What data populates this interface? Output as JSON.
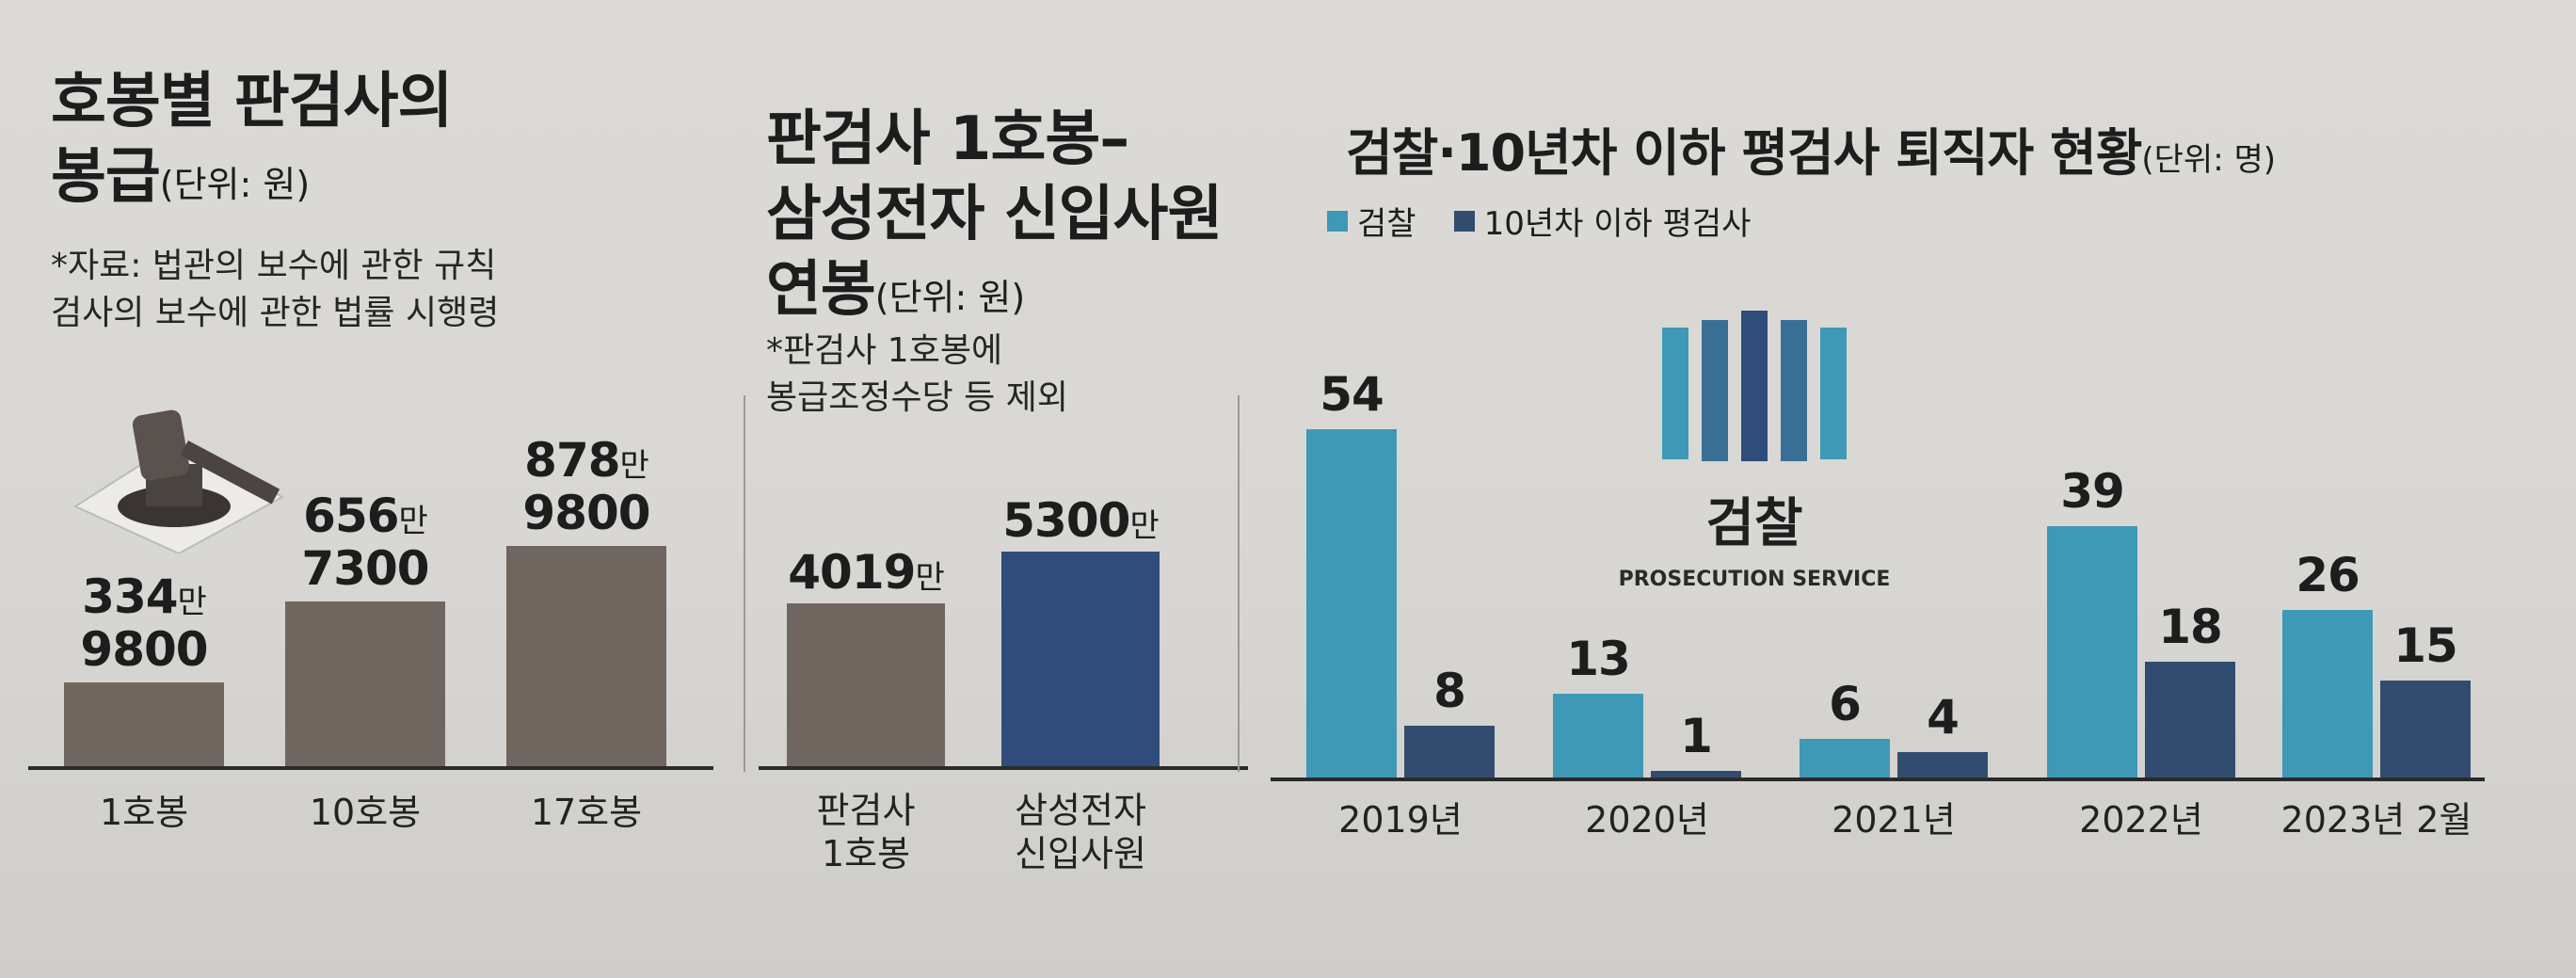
{
  "colors": {
    "gray_bar": "#6f6660",
    "navy_bar": "#2f4c7a",
    "teal_bar": "#3f98b5",
    "dark_bar": "#324c70"
  },
  "panel1": {
    "title_line1": "호봉별 판검사의",
    "title_line2": "봉급",
    "unit": "(단위: 원)",
    "note_line1": "*자료: 법관의 보수에 관한 규칙",
    "note_line2": "검사의 보수에 관한 법률 시행령",
    "icon": "gavel-icon",
    "labels": [
      {
        "top": "334만",
        "bottom": "9800"
      },
      {
        "top": "656만",
        "bottom": "7300"
      },
      {
        "top": "878만",
        "bottom": "9800"
      }
    ]
  },
  "panel2": {
    "title_line1": "판검사 1호봉–",
    "title_line2": "삼성전자 신입사원",
    "title_line3": "연봉",
    "unit": "(단위: 원)",
    "note_line1": "*판검사 1호봉에",
    "note_line2": "봉급조정수당 등 제외",
    "labels": [
      "4019만",
      "5300만"
    ],
    "cat_lines": [
      [
        "판검사",
        "1호봉"
      ],
      [
        "삼성전자",
        "신입사원"
      ]
    ]
  },
  "panel3": {
    "title": "검찰·10년차 이하 평검사 퇴직자 현황",
    "unit": "(단위: 명)",
    "logo_text": "검찰",
    "logo_sub": "PROSECUTION SERVICE"
  },
  "chart_data": [
    {
      "type": "bar",
      "title": "호봉별 판검사의 봉급",
      "unit": "원",
      "categories": [
        "1호봉",
        "10호봉",
        "17호봉"
      ],
      "values": [
        3349800,
        6567300,
        8789800
      ]
    },
    {
      "type": "bar",
      "title": "판검사 1호봉–삼성전자 신입사원 연봉",
      "unit": "원",
      "categories": [
        "판검사 1호봉",
        "삼성전자 신입사원"
      ],
      "values": [
        40190000,
        53000000
      ]
    },
    {
      "type": "bar",
      "title": "검찰·10년차 이하 평검사 퇴직자 현황",
      "unit": "명",
      "categories": [
        "2019년",
        "2020년",
        "2021년",
        "2022년",
        "2023년 2월"
      ],
      "series": [
        {
          "name": "검찰",
          "values": [
            54,
            13,
            6,
            39,
            26
          ]
        },
        {
          "name": "10년차 이하 평검사",
          "values": [
            8,
            1,
            4,
            18,
            15
          ]
        }
      ]
    }
  ]
}
